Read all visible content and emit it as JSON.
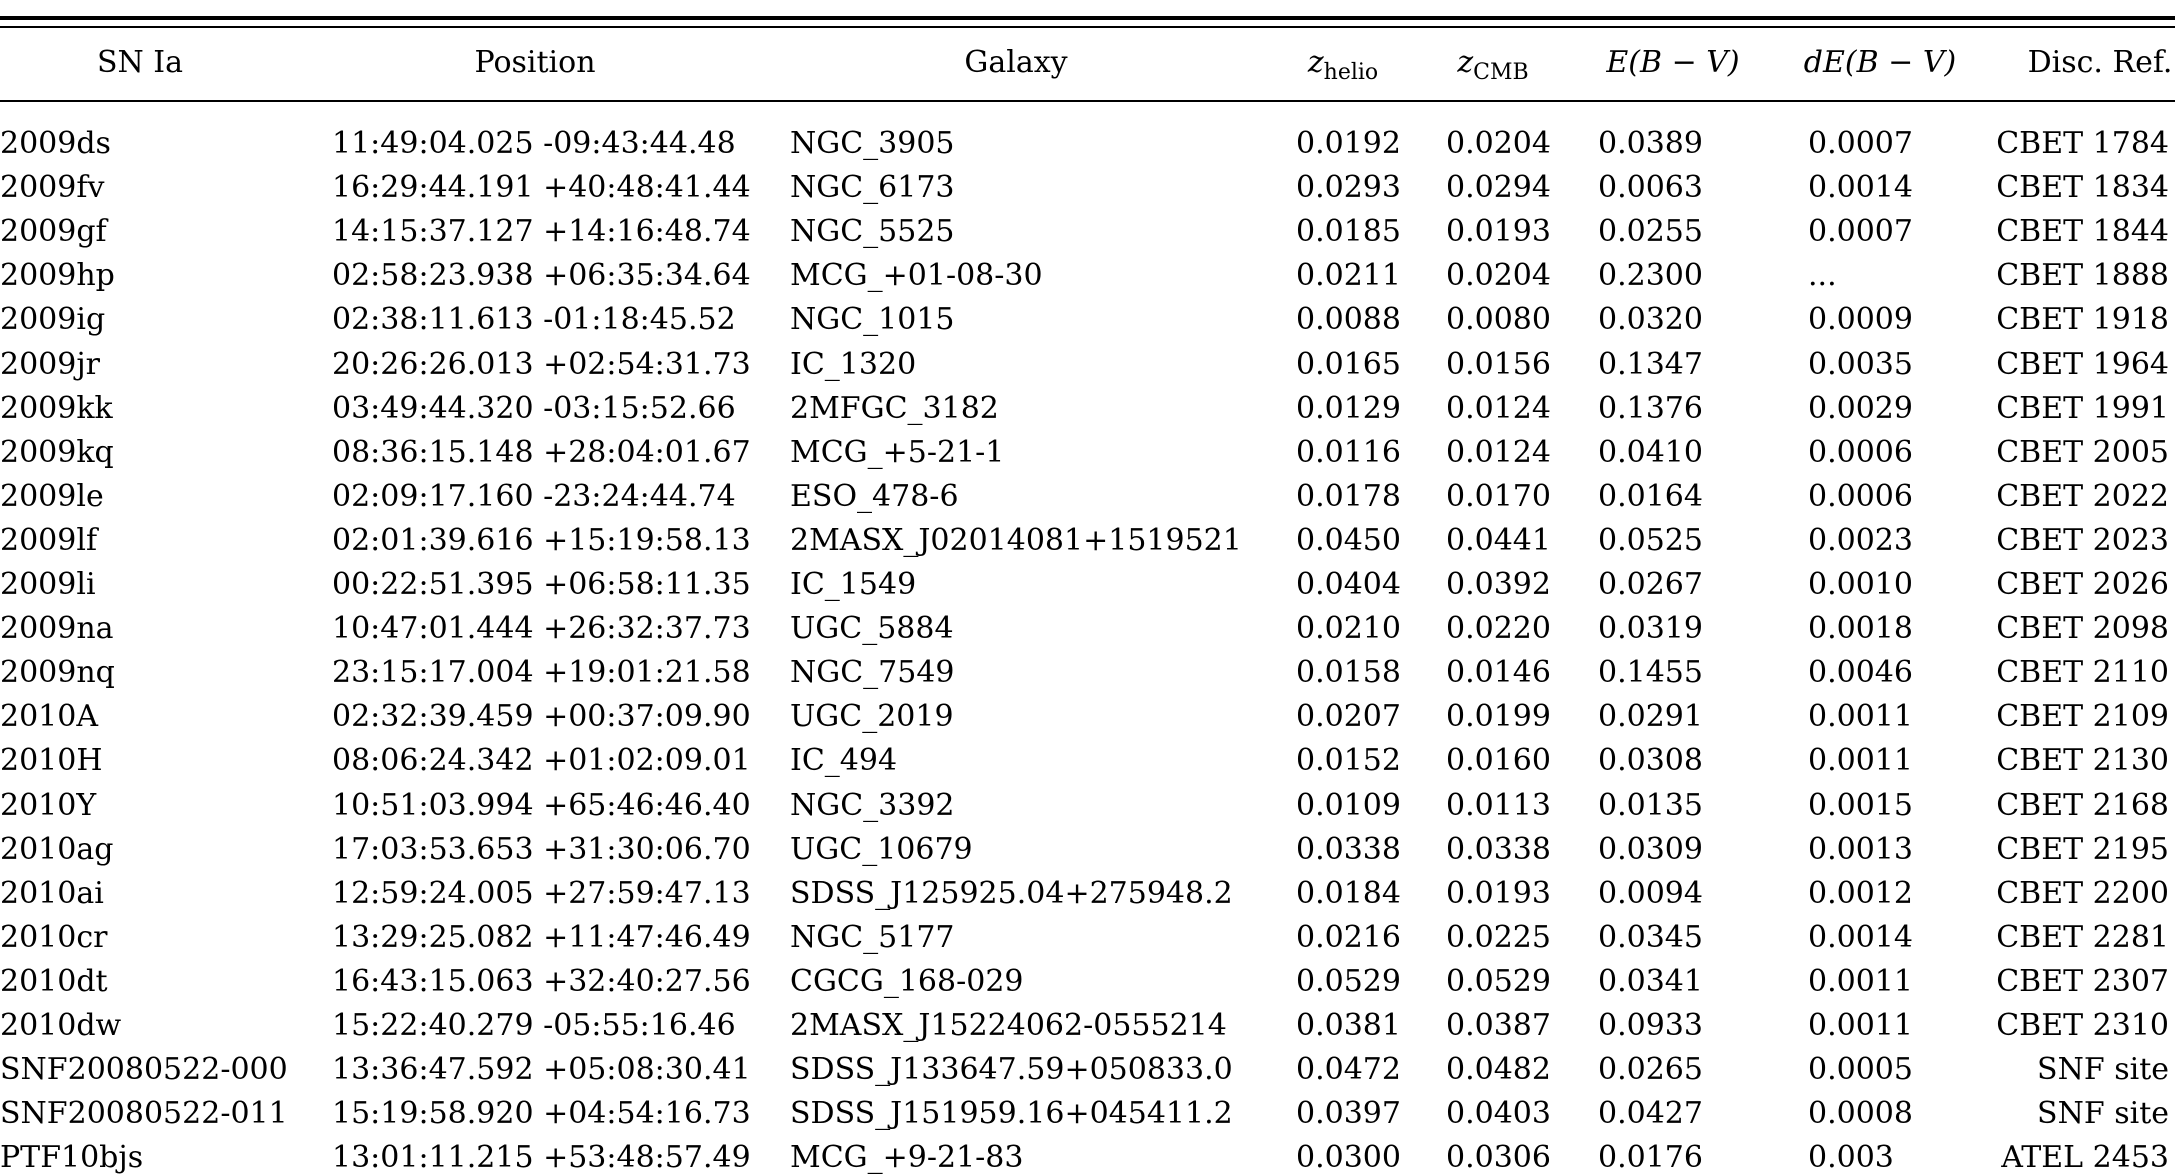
{
  "columns": {
    "sn": "SN Ia",
    "position": "Position",
    "galaxy": "Galaxy",
    "zhelio": {
      "main": "z",
      "sub": "helio"
    },
    "zcmb": {
      "main": "z",
      "sub": "CMB"
    },
    "ebv": "E(B − V)",
    "debv": "dE(B − V)",
    "disc": "Disc. Ref."
  },
  "rows": [
    {
      "sn": "2009ds",
      "pos": "11:49:04.025 -09:43:44.48",
      "galaxy": "NGC_3905",
      "zhelio": "0.0192",
      "zcmb": "0.0204",
      "ebv": "0.0389",
      "debv": "0.0007",
      "disc": "CBET 1784"
    },
    {
      "sn": "2009fv",
      "pos": "16:29:44.191 +40:48:41.44",
      "galaxy": "NGC_6173",
      "zhelio": "0.0293",
      "zcmb": "0.0294",
      "ebv": "0.0063",
      "debv": "0.0014",
      "disc": "CBET 1834"
    },
    {
      "sn": "2009gf",
      "pos": "14:15:37.127 +14:16:48.74",
      "galaxy": "NGC_5525",
      "zhelio": "0.0185",
      "zcmb": "0.0193",
      "ebv": "0.0255",
      "debv": "0.0007",
      "disc": "CBET 1844"
    },
    {
      "sn": "2009hp",
      "pos": "02:58:23.938 +06:35:34.64",
      "galaxy": "MCG_+01-08-30",
      "zhelio": "0.0211",
      "zcmb": "0.0204",
      "ebv": "0.2300",
      "debv": "...",
      "disc": "CBET 1888"
    },
    {
      "sn": "2009ig",
      "pos": "02:38:11.613 -01:18:45.52",
      "galaxy": "NGC_1015",
      "zhelio": "0.0088",
      "zcmb": "0.0080",
      "ebv": "0.0320",
      "debv": "0.0009",
      "disc": "CBET 1918"
    },
    {
      "sn": "2009jr",
      "pos": "20:26:26.013 +02:54:31.73",
      "galaxy": "IC_1320",
      "zhelio": "0.0165",
      "zcmb": "0.0156",
      "ebv": "0.1347",
      "debv": "0.0035",
      "disc": "CBET 1964"
    },
    {
      "sn": "2009kk",
      "pos": "03:49:44.320 -03:15:52.66",
      "galaxy": "2MFGC_3182",
      "zhelio": "0.0129",
      "zcmb": "0.0124",
      "ebv": "0.1376",
      "debv": "0.0029",
      "disc": "CBET 1991"
    },
    {
      "sn": "2009kq",
      "pos": "08:36:15.148 +28:04:01.67",
      "galaxy": "MCG_+5-21-1",
      "zhelio": "0.0116",
      "zcmb": "0.0124",
      "ebv": "0.0410",
      "debv": "0.0006",
      "disc": "CBET 2005"
    },
    {
      "sn": "2009le",
      "pos": "02:09:17.160 -23:24:44.74",
      "galaxy": "ESO_478-6",
      "zhelio": "0.0178",
      "zcmb": "0.0170",
      "ebv": "0.0164",
      "debv": "0.0006",
      "disc": "CBET 2022"
    },
    {
      "sn": "2009lf",
      "pos": "02:01:39.616 +15:19:58.13",
      "galaxy": "2MASX_J02014081+1519521",
      "zhelio": "0.0450",
      "zcmb": "0.0441",
      "ebv": "0.0525",
      "debv": "0.0023",
      "disc": "CBET 2023"
    },
    {
      "sn": "2009li",
      "pos": "00:22:51.395 +06:58:11.35",
      "galaxy": "IC_1549",
      "zhelio": "0.0404",
      "zcmb": "0.0392",
      "ebv": "0.0267",
      "debv": "0.0010",
      "disc": "CBET 2026"
    },
    {
      "sn": "2009na",
      "pos": "10:47:01.444 +26:32:37.73",
      "galaxy": "UGC_5884",
      "zhelio": "0.0210",
      "zcmb": "0.0220",
      "ebv": "0.0319",
      "debv": "0.0018",
      "disc": "CBET 2098"
    },
    {
      "sn": "2009nq",
      "pos": "23:15:17.004 +19:01:21.58",
      "galaxy": "NGC_7549",
      "zhelio": "0.0158",
      "zcmb": "0.0146",
      "ebv": "0.1455",
      "debv": "0.0046",
      "disc": "CBET 2110"
    },
    {
      "sn": "2010A",
      "pos": "02:32:39.459 +00:37:09.90",
      "galaxy": "UGC_2019",
      "zhelio": "0.0207",
      "zcmb": "0.0199",
      "ebv": "0.0291",
      "debv": "0.0011",
      "disc": "CBET 2109"
    },
    {
      "sn": "2010H",
      "pos": "08:06:24.342 +01:02:09.01",
      "galaxy": "IC_494",
      "zhelio": "0.0152",
      "zcmb": "0.0160",
      "ebv": "0.0308",
      "debv": "0.0011",
      "disc": "CBET 2130"
    },
    {
      "sn": "2010Y",
      "pos": "10:51:03.994 +65:46:46.40",
      "galaxy": "NGC_3392",
      "zhelio": "0.0109",
      "zcmb": "0.0113",
      "ebv": "0.0135",
      "debv": "0.0015",
      "disc": "CBET 2168"
    },
    {
      "sn": "2010ag",
      "pos": "17:03:53.653 +31:30:06.70",
      "galaxy": "UGC_10679",
      "zhelio": "0.0338",
      "zcmb": "0.0338",
      "ebv": "0.0309",
      "debv": "0.0013",
      "disc": "CBET 2195"
    },
    {
      "sn": "2010ai",
      "pos": "12:59:24.005 +27:59:47.13",
      "galaxy": "SDSS_J125925.04+275948.2",
      "zhelio": "0.0184",
      "zcmb": "0.0193",
      "ebv": "0.0094",
      "debv": "0.0012",
      "disc": "CBET 2200"
    },
    {
      "sn": "2010cr",
      "pos": "13:29:25.082 +11:47:46.49",
      "galaxy": "NGC_5177",
      "zhelio": "0.0216",
      "zcmb": "0.0225",
      "ebv": "0.0345",
      "debv": "0.0014",
      "disc": "CBET 2281"
    },
    {
      "sn": "2010dt",
      "pos": "16:43:15.063 +32:40:27.56",
      "galaxy": "CGCG_168-029",
      "zhelio": "0.0529",
      "zcmb": "0.0529",
      "ebv": "0.0341",
      "debv": "0.0011",
      "disc": "CBET 2307"
    },
    {
      "sn": "2010dw",
      "pos": "15:22:40.279 -05:55:16.46",
      "galaxy": "2MASX_J15224062-0555214",
      "zhelio": "0.0381",
      "zcmb": "0.0387",
      "ebv": "0.0933",
      "debv": "0.0011",
      "disc": "CBET 2310"
    },
    {
      "sn": "SNF20080522-000",
      "pos": "13:36:47.592 +05:08:30.41",
      "galaxy": "SDSS_J133647.59+050833.0",
      "zhelio": "0.0472",
      "zcmb": "0.0482",
      "ebv": "0.0265",
      "debv": "0.0005",
      "disc": "SNF site"
    },
    {
      "sn": "SNF20080522-011",
      "pos": "15:19:58.920 +04:54:16.73",
      "galaxy": "SDSS_J151959.16+045411.2",
      "zhelio": "0.0397",
      "zcmb": "0.0403",
      "ebv": "0.0427",
      "debv": "0.0008",
      "disc": "SNF site"
    },
    {
      "sn": "PTF10bjs",
      "pos": "13:01:11.215 +53:48:57.49",
      "galaxy": "MCG_+9-21-83",
      "zhelio": "0.0300",
      "zcmb": "0.0306",
      "ebv": "0.0176",
      "debv": "0.003",
      "disc": "ATEL 2453"
    }
  ]
}
